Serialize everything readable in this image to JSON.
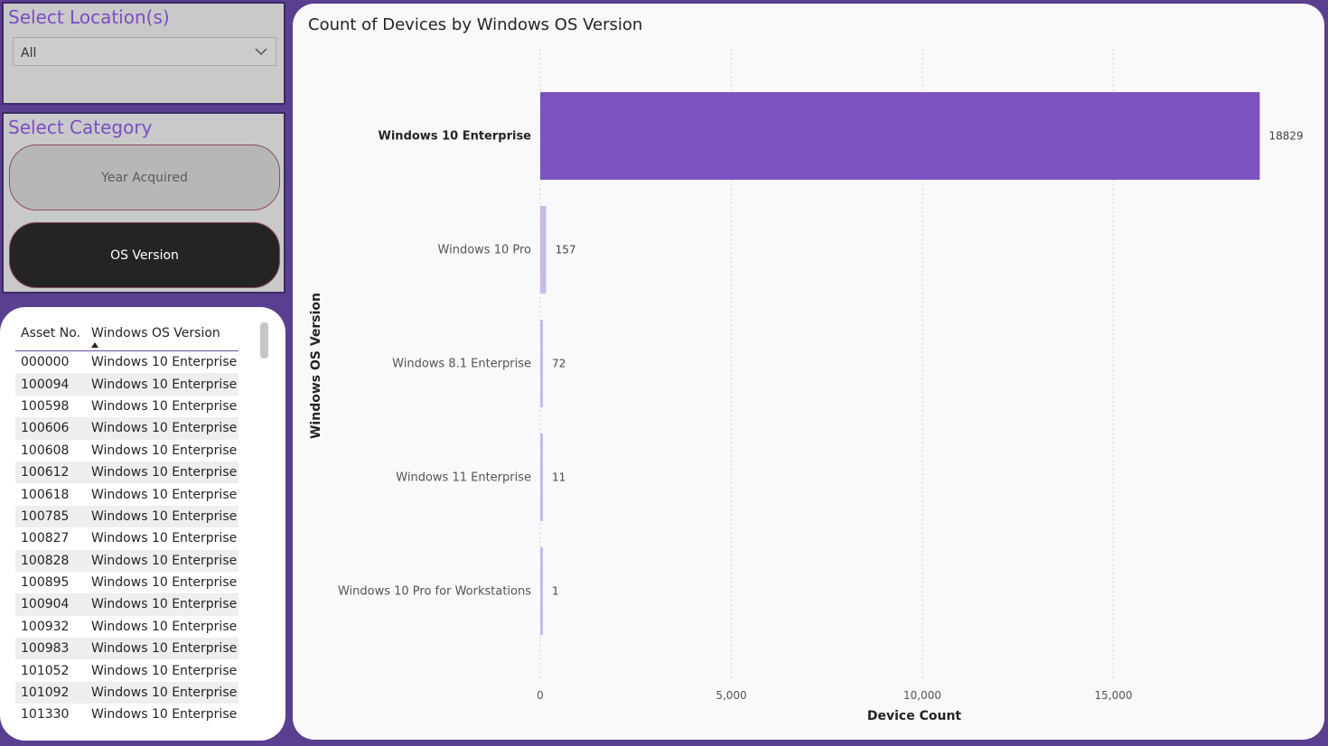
{
  "location_slicer": {
    "title": "Select Location(s)",
    "selected": "All"
  },
  "category_slicer": {
    "title": "Select Category",
    "options": [
      "Year Acquired",
      "OS Version"
    ],
    "selected": "OS Version"
  },
  "table": {
    "columns": [
      "Asset No.",
      "Windows OS Version"
    ],
    "sort_column": "Windows OS Version",
    "rows": [
      [
        "000000",
        "Windows 10 Enterprise"
      ],
      [
        "100094",
        "Windows 10 Enterprise"
      ],
      [
        "100598",
        "Windows 10 Enterprise"
      ],
      [
        "100606",
        "Windows 10 Enterprise"
      ],
      [
        "100608",
        "Windows 10 Enterprise"
      ],
      [
        "100612",
        "Windows 10 Enterprise"
      ],
      [
        "100618",
        "Windows 10 Enterprise"
      ],
      [
        "100785",
        "Windows 10 Enterprise"
      ],
      [
        "100827",
        "Windows 10 Enterprise"
      ],
      [
        "100828",
        "Windows 10 Enterprise"
      ],
      [
        "100895",
        "Windows 10 Enterprise"
      ],
      [
        "100904",
        "Windows 10 Enterprise"
      ],
      [
        "100932",
        "Windows 10 Enterprise"
      ],
      [
        "100983",
        "Windows 10 Enterprise"
      ],
      [
        "101052",
        "Windows 10 Enterprise"
      ],
      [
        "101092",
        "Windows 10 Enterprise"
      ],
      [
        "101330",
        "Windows 10 Enterprise"
      ]
    ]
  },
  "chart_data": {
    "type": "bar",
    "orientation": "horizontal",
    "title": "Count of Devices by Windows OS Version",
    "xlabel": "Device Count",
    "ylabel": "Windows OS Version",
    "categories": [
      "Windows 10 Enterprise",
      "Windows 10 Pro",
      "Windows 8.1 Enterprise",
      "Windows 11 Enterprise",
      "Windows 10 Pro for Workstations"
    ],
    "values": [
      18829,
      157,
      72,
      11,
      1
    ],
    "xlim": [
      0,
      20000
    ],
    "xticks": [
      0,
      5000,
      10000,
      15000
    ],
    "xtick_labels": [
      "0",
      "5,000",
      "10,000",
      "15,000"
    ],
    "highlighted_category": "Windows 10 Enterprise",
    "colors": {
      "highlight": "#7b52bf",
      "muted": "#cbb9ea"
    },
    "grid": true
  },
  "colors": {
    "background": "#5a3e8f",
    "accent": "#7a4ec4",
    "selected_pill": "#252423"
  }
}
